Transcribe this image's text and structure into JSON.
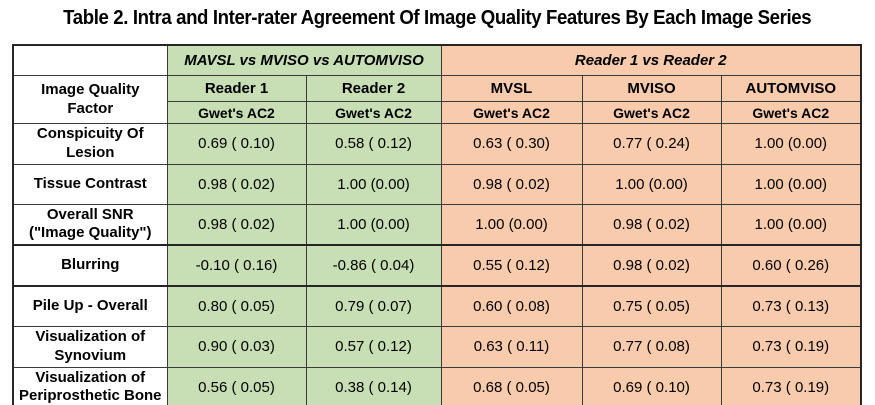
{
  "title": "Table 2. Intra and Inter-rater Agreement Of Image Quality Features By Each Image Series",
  "table": {
    "factor_header_lines": [
      "Image Quality",
      "Factor"
    ],
    "groups": {
      "intra": {
        "label": "MAVSL vs MVISO vs AUTOMVISO",
        "color": "#c8dfb5"
      },
      "inter": {
        "label": "Reader 1 vs Reader 2",
        "color": "#f8cbad"
      }
    },
    "columns": [
      {
        "name": "Reader 1",
        "sub": "Gwet's AC2",
        "group": "intra"
      },
      {
        "name": "Reader 2",
        "sub": "Gwet's AC2",
        "group": "intra"
      },
      {
        "name": "MVSL",
        "sub": "Gwet's AC2",
        "group": "inter"
      },
      {
        "name": "MVISO",
        "sub": "Gwet's AC2",
        "group": "inter"
      },
      {
        "name": "AUTOMVISO",
        "sub": "Gwet's AC2",
        "group": "inter"
      }
    ],
    "rows": [
      {
        "factor_lines": [
          "Conspicuity Of",
          "Lesion"
        ],
        "values": [
          "0.69 ( 0.10)",
          "0.58 ( 0.12)",
          "0.63 ( 0.30)",
          "0.77 ( 0.24)",
          "1.00 (0.00)"
        ]
      },
      {
        "factor_lines": [
          "Tissue Contrast"
        ],
        "values": [
          "0.98 ( 0.02)",
          "1.00 (0.00)",
          "0.98 ( 0.02)",
          "1.00 (0.00)",
          "1.00 (0.00)"
        ]
      },
      {
        "factor_lines": [
          "Overall SNR",
          "(\"Image Quality\")"
        ],
        "values": [
          "0.98 ( 0.02)",
          "1.00 (0.00)",
          "1.00 (0.00)",
          "0.98 ( 0.02)",
          "1.00 (0.00)"
        ]
      },
      {
        "factor_lines": [
          "Blurring"
        ],
        "values": [
          "-0.10 ( 0.16)",
          "-0.86 ( 0.04)",
          "0.55 ( 0.12)",
          "0.98 ( 0.02)",
          "0.60 ( 0.26)"
        ]
      },
      {
        "factor_lines": [
          "Pile Up - Overall"
        ],
        "values": [
          "0.80 ( 0.05)",
          "0.79 ( 0.07)",
          "0.60 ( 0.08)",
          "0.75 ( 0.05)",
          "0.73 ( 0.13)"
        ]
      },
      {
        "factor_lines": [
          "Visualization of",
          "Synovium"
        ],
        "values": [
          "0.90 ( 0.03)",
          "0.57 ( 0.12)",
          "0.63 ( 0.11)",
          "0.77 ( 0.08)",
          "0.73 ( 0.19)"
        ]
      },
      {
        "factor_lines": [
          "Visualization of",
          "Periprosthetic Bone"
        ],
        "values": [
          "0.56 ( 0.05)",
          "0.38 ( 0.14)",
          "0.68 ( 0.05)",
          "0.69 ( 0.10)",
          "0.73 ( 0.19)"
        ]
      }
    ],
    "colors": {
      "intra_green": "#c8dfb5",
      "inter_orange": "#f8cbad",
      "border": "#262626",
      "text": "#000000",
      "background": "#ffffff"
    }
  }
}
